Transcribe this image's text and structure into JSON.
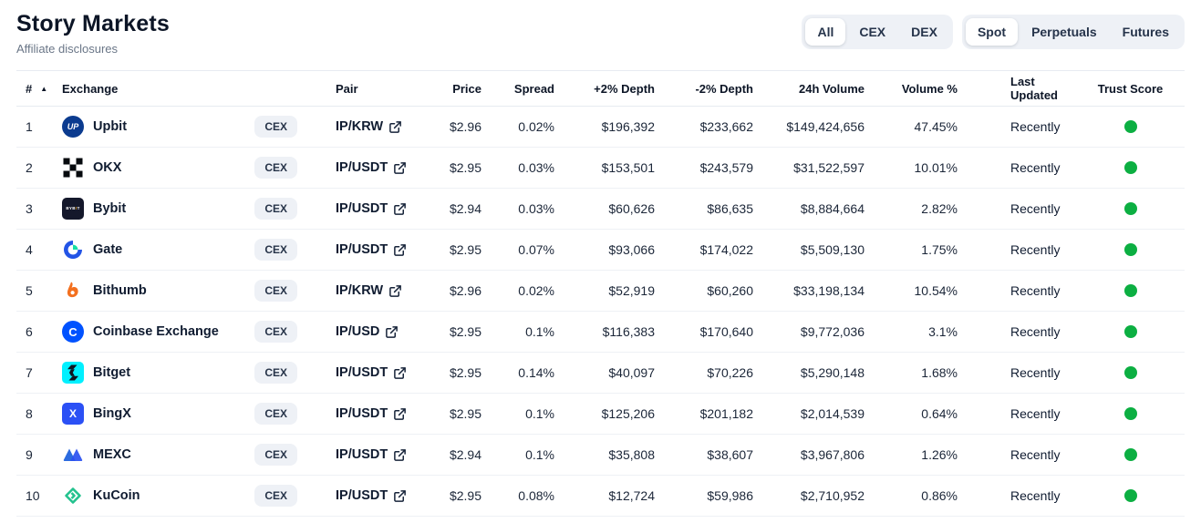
{
  "page": {
    "title": "Story Markets",
    "subtitle": "Affiliate disclosures"
  },
  "filters": {
    "market_type": {
      "options": [
        "All",
        "CEX",
        "DEX"
      ],
      "selected": "All"
    },
    "instrument": {
      "options": [
        "Spot",
        "Perpetuals",
        "Futures"
      ],
      "selected": "Spot"
    }
  },
  "table": {
    "columns": [
      "#",
      "Exchange",
      "Pair",
      "Price",
      "Spread",
      "+2% Depth",
      "-2% Depth",
      "24h Volume",
      "Volume %",
      "Last Updated",
      "Trust Score"
    ],
    "sort_icon": "ascending-triangle",
    "trust_score_color": "#0caf42",
    "rows": [
      {
        "rank": "1",
        "exchange": "Upbit",
        "logo": "upbit",
        "badge": "CEX",
        "pair": "IP/KRW",
        "price": "$2.96",
        "spread": "0.02%",
        "plus_depth": "$196,392",
        "minus_depth": "$233,662",
        "volume": "$149,424,656",
        "volume_pct": "47.45%",
        "last_updated": "Recently",
        "trust": "green"
      },
      {
        "rank": "2",
        "exchange": "OKX",
        "logo": "okx",
        "badge": "CEX",
        "pair": "IP/USDT",
        "price": "$2.95",
        "spread": "0.03%",
        "plus_depth": "$153,501",
        "minus_depth": "$243,579",
        "volume": "$31,522,597",
        "volume_pct": "10.01%",
        "last_updated": "Recently",
        "trust": "green"
      },
      {
        "rank": "3",
        "exchange": "Bybit",
        "logo": "bybit",
        "badge": "CEX",
        "pair": "IP/USDT",
        "price": "$2.94",
        "spread": "0.03%",
        "plus_depth": "$60,626",
        "minus_depth": "$86,635",
        "volume": "$8,884,664",
        "volume_pct": "2.82%",
        "last_updated": "Recently",
        "trust": "green"
      },
      {
        "rank": "4",
        "exchange": "Gate",
        "logo": "gate",
        "badge": "CEX",
        "pair": "IP/USDT",
        "price": "$2.95",
        "spread": "0.07%",
        "plus_depth": "$93,066",
        "minus_depth": "$174,022",
        "volume": "$5,509,130",
        "volume_pct": "1.75%",
        "last_updated": "Recently",
        "trust": "green"
      },
      {
        "rank": "5",
        "exchange": "Bithumb",
        "logo": "bithumb",
        "badge": "CEX",
        "pair": "IP/KRW",
        "price": "$2.96",
        "spread": "0.02%",
        "plus_depth": "$52,919",
        "minus_depth": "$60,260",
        "volume": "$33,198,134",
        "volume_pct": "10.54%",
        "last_updated": "Recently",
        "trust": "green"
      },
      {
        "rank": "6",
        "exchange": "Coinbase Exchange",
        "logo": "coinbase",
        "badge": "CEX",
        "pair": "IP/USD",
        "price": "$2.95",
        "spread": "0.1%",
        "plus_depth": "$116,383",
        "minus_depth": "$170,640",
        "volume": "$9,772,036",
        "volume_pct": "3.1%",
        "last_updated": "Recently",
        "trust": "green"
      },
      {
        "rank": "7",
        "exchange": "Bitget",
        "logo": "bitget",
        "badge": "CEX",
        "pair": "IP/USDT",
        "price": "$2.95",
        "spread": "0.14%",
        "plus_depth": "$40,097",
        "minus_depth": "$70,226",
        "volume": "$5,290,148",
        "volume_pct": "1.68%",
        "last_updated": "Recently",
        "trust": "green"
      },
      {
        "rank": "8",
        "exchange": "BingX",
        "logo": "bingx",
        "badge": "CEX",
        "pair": "IP/USDT",
        "price": "$2.95",
        "spread": "0.1%",
        "plus_depth": "$125,206",
        "minus_depth": "$201,182",
        "volume": "$2,014,539",
        "volume_pct": "0.64%",
        "last_updated": "Recently",
        "trust": "green"
      },
      {
        "rank": "9",
        "exchange": "MEXC",
        "logo": "mexc",
        "badge": "CEX",
        "pair": "IP/USDT",
        "price": "$2.94",
        "spread": "0.1%",
        "plus_depth": "$35,808",
        "minus_depth": "$38,607",
        "volume": "$3,967,806",
        "volume_pct": "1.26%",
        "last_updated": "Recently",
        "trust": "green"
      },
      {
        "rank": "10",
        "exchange": "KuCoin",
        "logo": "kucoin",
        "badge": "CEX",
        "pair": "IP/USDT",
        "price": "$2.95",
        "spread": "0.08%",
        "plus_depth": "$12,724",
        "minus_depth": "$59,986",
        "volume": "$2,710,952",
        "volume_pct": "0.86%",
        "last_updated": "Recently",
        "trust": "green"
      }
    ]
  },
  "logos": {
    "upbit": {
      "icon": "upbit-logo",
      "shape": "circle",
      "bg": "#0b3b8f",
      "fg": "#ffffff",
      "text": "UP"
    },
    "okx": {
      "icon": "okx-logo",
      "shape": "squares",
      "color": "#060a0e"
    },
    "bybit": {
      "icon": "bybit-logo",
      "shape": "square",
      "bg": "#14182b",
      "fg": "#ffffff",
      "accent": "#f7a600",
      "text": "BYBIT"
    },
    "gate": {
      "icon": "gate-logo",
      "shape": "ring",
      "color": "#2354e6",
      "accent": "#17dfa6"
    },
    "bithumb": {
      "icon": "bithumb-logo",
      "shape": "flame",
      "color": "#f3701f"
    },
    "coinbase": {
      "icon": "coinbase-logo",
      "shape": "circle",
      "bg": "#0052ff",
      "fg": "#ffffff",
      "text": "C"
    },
    "bitget": {
      "icon": "bitget-logo",
      "shape": "square",
      "bg": "#00f0ff",
      "color": "#10141f"
    },
    "bingx": {
      "icon": "bingx-logo",
      "shape": "square",
      "bg": "#2b50f5",
      "fg": "#ffffff",
      "text": "X"
    },
    "mexc": {
      "icon": "mexc-logo",
      "shape": "mountains",
      "color": "#2c6bdf",
      "accent": "#2a50f0"
    },
    "kucoin": {
      "icon": "kucoin-logo",
      "shape": "diamond",
      "color": "#23c28e"
    }
  },
  "icons": {
    "external_link": "external-link-icon",
    "sort": "sort-ascending-icon"
  }
}
